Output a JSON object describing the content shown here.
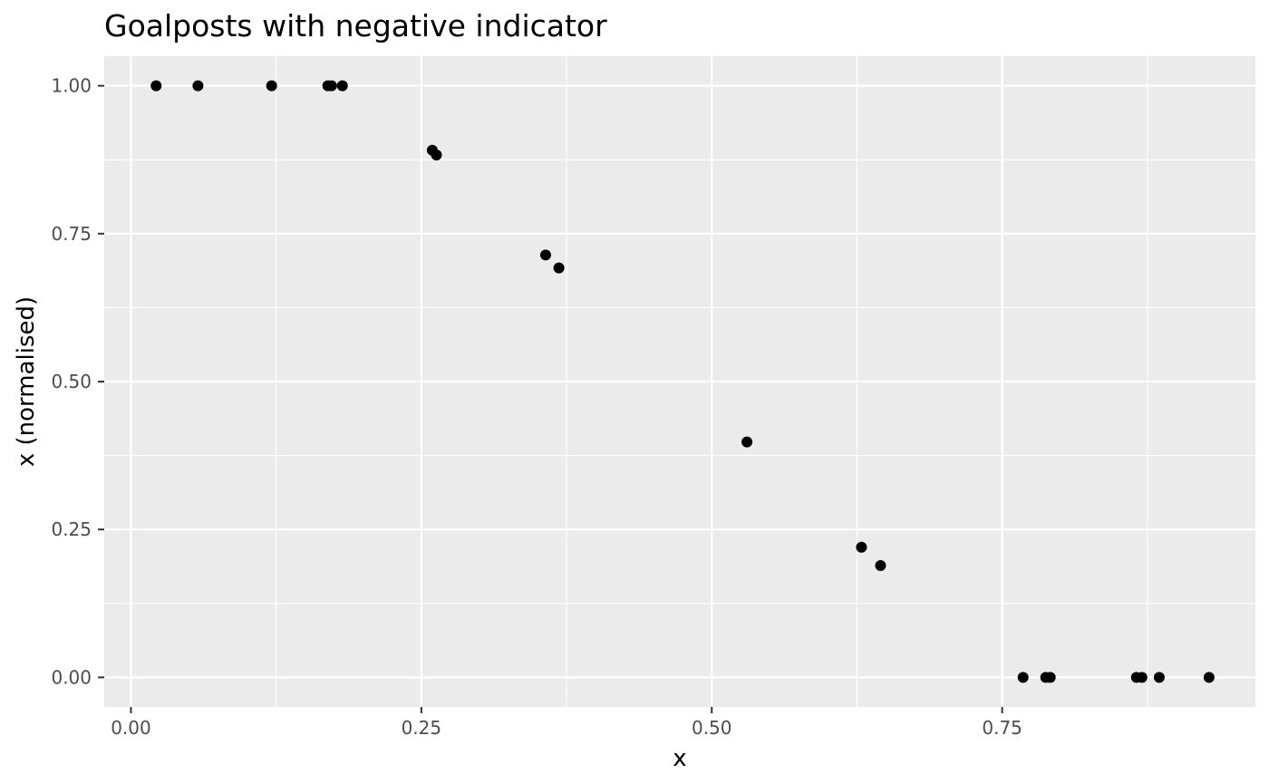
{
  "chart_data": {
    "type": "scatter",
    "title": "Goalposts with negative indicator",
    "xlabel": "x",
    "ylabel": "x (normalised)",
    "xlim": [
      -0.023,
      0.968
    ],
    "ylim": [
      -0.05,
      1.05
    ],
    "x_ticks": [
      0.0,
      0.25,
      0.5,
      0.75
    ],
    "x_tick_labels": [
      "0.00",
      "0.25",
      "0.50",
      "0.75"
    ],
    "y_ticks": [
      0.0,
      0.25,
      0.5,
      0.75,
      1.0
    ],
    "y_tick_labels": [
      "0.00",
      "0.25",
      "0.50",
      "0.75",
      "1.00"
    ],
    "grid": true,
    "legend": "none",
    "colors": {
      "panel": "#ebebeb",
      "grid_major": "#ffffff",
      "point": "#000000",
      "tick": "#333333"
    },
    "points": [
      {
        "x": 0.0217,
        "y": 1.0
      },
      {
        "x": 0.0577,
        "y": 1.0
      },
      {
        "x": 0.1211,
        "y": 1.0
      },
      {
        "x": 0.1695,
        "y": 1.0
      },
      {
        "x": 0.1727,
        "y": 1.0
      },
      {
        "x": 0.182,
        "y": 1.0
      },
      {
        "x": 0.2594,
        "y": 0.891
      },
      {
        "x": 0.263,
        "y": 0.883
      },
      {
        "x": 0.357,
        "y": 0.714
      },
      {
        "x": 0.3684,
        "y": 0.692
      },
      {
        "x": 0.5303,
        "y": 0.398
      },
      {
        "x": 0.6289,
        "y": 0.22
      },
      {
        "x": 0.6453,
        "y": 0.189
      },
      {
        "x": 0.768,
        "y": 0.0
      },
      {
        "x": 0.7875,
        "y": 0.0
      },
      {
        "x": 0.7914,
        "y": 0.0
      },
      {
        "x": 0.8656,
        "y": 0.0
      },
      {
        "x": 0.8703,
        "y": 0.0
      },
      {
        "x": 0.8852,
        "y": 0.0
      },
      {
        "x": 0.9281,
        "y": 0.0
      }
    ]
  }
}
